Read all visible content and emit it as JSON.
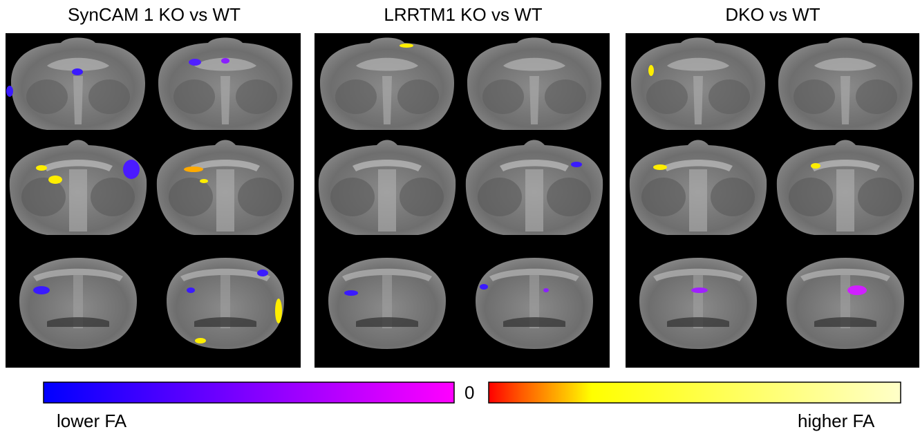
{
  "panels": [
    {
      "title": "SynCAM 1 KO vs WT"
    },
    {
      "title": "LRRTM1 KO vs WT"
    },
    {
      "title": "DKO vs WT"
    }
  ],
  "colorbar": {
    "low_label": "lower FA",
    "center_label": "0",
    "high_label": "higher FA"
  }
}
